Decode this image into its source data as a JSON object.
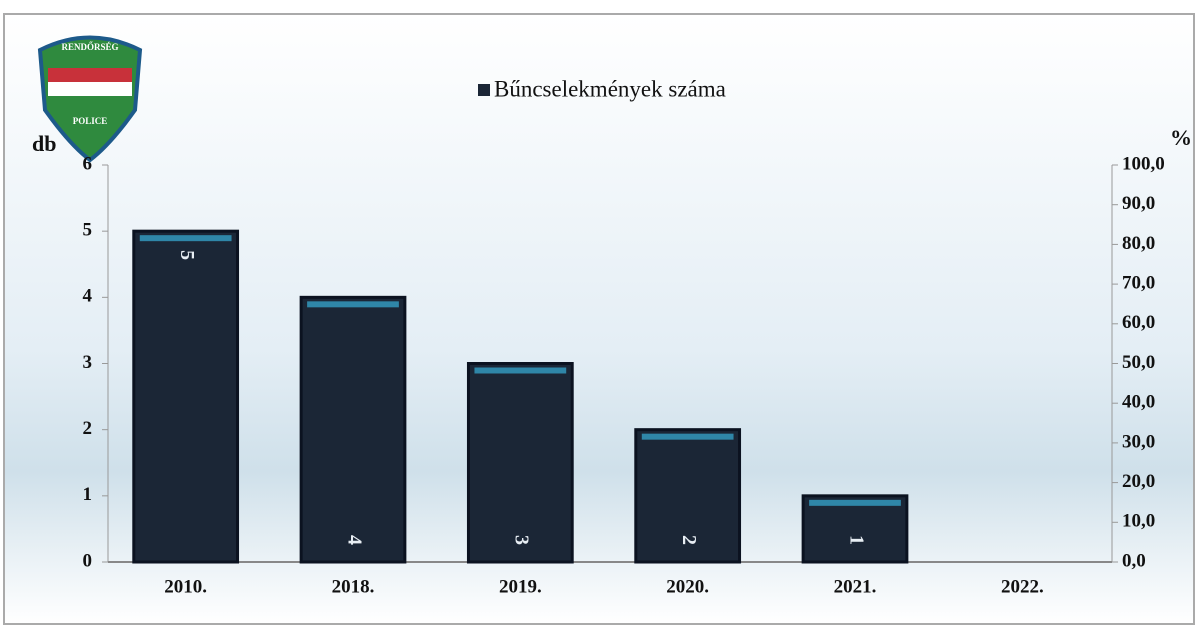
{
  "logo": {
    "top": "RENDŐRSÉG",
    "bottom": "POLICE"
  },
  "chart_data": {
    "type": "bar",
    "y_label": "db",
    "y2_label": "%",
    "categories": [
      "2010.",
      "2018.",
      "2019.",
      "2020.",
      "2021.",
      "2022."
    ],
    "series": [
      {
        "name": "Bűncselekmények száma",
        "color": "#1b2636",
        "values": [
          5,
          4,
          3,
          2,
          1,
          null
        ]
      }
    ],
    "ylim": [
      0,
      6
    ],
    "yticks": [
      0,
      1,
      2,
      3,
      4,
      5,
      6
    ],
    "y2lim": [
      0,
      100
    ],
    "y2ticks": [
      {
        "value": 0,
        "label": "0,0"
      },
      {
        "value": 10,
        "label": "10,0"
      },
      {
        "value": 20,
        "label": "20,0"
      },
      {
        "value": 30,
        "label": "30,0"
      },
      {
        "value": 40,
        "label": "40,0"
      },
      {
        "value": 50,
        "label": "50,0"
      },
      {
        "value": 60,
        "label": "60,0"
      },
      {
        "value": 70,
        "label": "70,0"
      },
      {
        "value": 80,
        "label": "80,0"
      },
      {
        "value": 90,
        "label": "90,0"
      },
      {
        "value": 100,
        "label": "100,0"
      }
    ],
    "grid": false
  }
}
